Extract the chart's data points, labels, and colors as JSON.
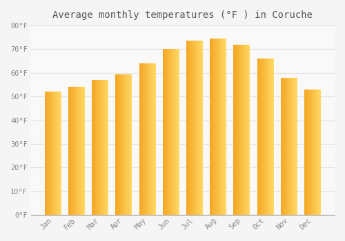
{
  "title": "Average monthly temperatures (°F ) in Coruche",
  "months": [
    "Jan",
    "Feb",
    "Mar",
    "Apr",
    "May",
    "Jun",
    "Jul",
    "Aug",
    "Sep",
    "Oct",
    "Nov",
    "Dec"
  ],
  "values": [
    52,
    54,
    57,
    59.5,
    64,
    70,
    73.5,
    74.5,
    72,
    66,
    58,
    53
  ],
  "bar_color_left": "#F5A623",
  "bar_color_right": "#FFD966",
  "ylim": [
    0,
    80
  ],
  "yticks": [
    0,
    10,
    20,
    30,
    40,
    50,
    60,
    70,
    80
  ],
  "ytick_labels": [
    "0°F",
    "10°F",
    "20°F",
    "30°F",
    "40°F",
    "50°F",
    "60°F",
    "70°F",
    "80°F"
  ],
  "background_color": "#f5f5f5",
  "plot_bg_color": "#f9f9f9",
  "grid_color": "#e0e0e0",
  "title_fontsize": 10,
  "tick_fontsize": 7.5,
  "font_family": "monospace",
  "bar_width": 0.7,
  "gradient_steps": 50
}
